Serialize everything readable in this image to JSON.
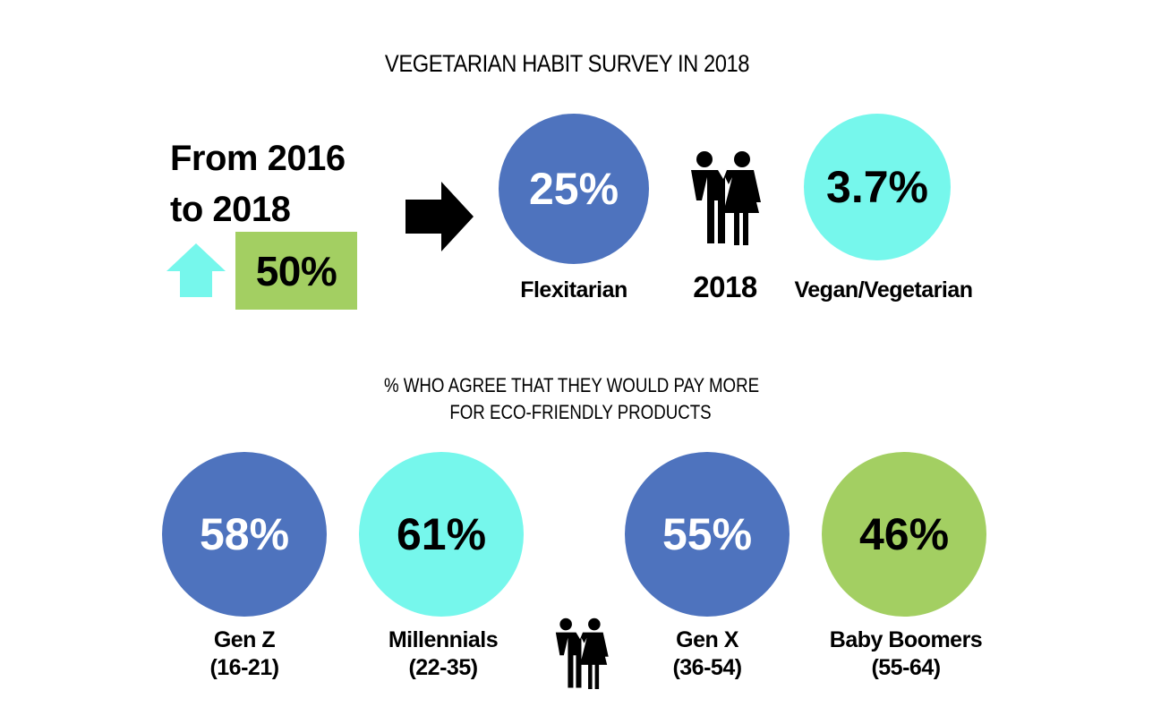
{
  "title": "VEGETARIAN HABIT SURVEY IN 2018",
  "change": {
    "line1": "From 2016",
    "line2": "to 2018",
    "value": "50%",
    "arrow_icon": "arrow-up-icon"
  },
  "stats": [
    {
      "value": "25%",
      "label": "Flexitarian",
      "color": "#4E73BE",
      "text_color": "#ffffff"
    },
    {
      "value": "3.7%",
      "label": "Vegan/Vegetarian",
      "color": "#76F7EC",
      "text_color": "#000000"
    }
  ],
  "year": "2018",
  "subtitle": {
    "line1": "% WHO AGREE THAT THEY WOULD PAY MORE",
    "line2": "FOR ECO-FRIENDLY PRODUCTS"
  },
  "generations": [
    {
      "value": "58%",
      "name": "Gen Z",
      "range": "(16-21)",
      "color": "#4E73BE",
      "text_color": "#ffffff"
    },
    {
      "value": "61%",
      "name": "Millennials",
      "range": "(22-35)",
      "color": "#76F7EC",
      "text_color": "#000000"
    },
    {
      "value": "55%",
      "name": "Gen X",
      "range": "(36-54)",
      "color": "#4E73BE",
      "text_color": "#ffffff"
    },
    {
      "value": "46%",
      "name": "Baby Boomers",
      "range": "(55-64)",
      "color": "#A3CF62",
      "text_color": "#000000"
    }
  ],
  "colors": {
    "blue": "#4E73BE",
    "cyan": "#76F7EC",
    "green": "#A3CF62"
  }
}
